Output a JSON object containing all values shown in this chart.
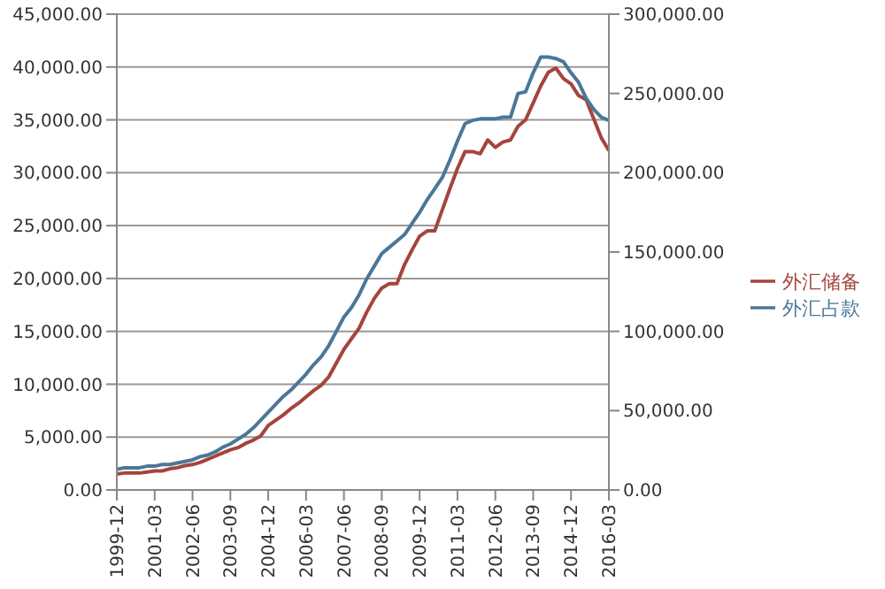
{
  "chart_data": {
    "type": "line",
    "categories": [
      "1999-12",
      null,
      null,
      null,
      null,
      "2001-03",
      null,
      null,
      null,
      null,
      "2002-06",
      null,
      null,
      null,
      null,
      "2003-09",
      null,
      null,
      null,
      null,
      "2004-12",
      null,
      null,
      null,
      null,
      "2006-03",
      null,
      null,
      null,
      null,
      "2007-06",
      null,
      null,
      null,
      null,
      "2008-09",
      null,
      null,
      null,
      null,
      "2009-12",
      null,
      null,
      null,
      null,
      "2011-03",
      null,
      null,
      null,
      null,
      "2012-06",
      null,
      null,
      null,
      null,
      "2013-09",
      null,
      null,
      null,
      null,
      "2014-12",
      null,
      null,
      null,
      null,
      "2016-03"
    ],
    "series": [
      {
        "name": "外汇储备",
        "color": "#a5443c",
        "values": [
          1500,
          1600,
          1600,
          1600,
          1700,
          1800,
          1800,
          2000,
          2100,
          2300,
          2400,
          2600,
          2900,
          3200,
          3500,
          3800,
          4000,
          4400,
          4700,
          5100,
          6100,
          6600,
          7100,
          7700,
          8200,
          8800,
          9400,
          9900,
          10700,
          12000,
          13300,
          14300,
          15300,
          16800,
          18100,
          19100,
          19500,
          19500,
          21300,
          22700,
          24000,
          24500,
          24500,
          26500,
          28500,
          30400,
          32000,
          32000,
          31800,
          33100,
          32400,
          32900,
          33100,
          34400,
          35000,
          36600,
          38200,
          39500,
          39900,
          38900,
          38400,
          37300,
          36900,
          35100,
          33300,
          32100
        ]
      },
      {
        "name": "外汇占款",
        "color": "#4a7799",
        "axis": "y2",
        "values": [
          13000,
          14000,
          14000,
          14000,
          15000,
          15000,
          16000,
          16000,
          17000,
          18000,
          19000,
          21000,
          22000,
          24000,
          27000,
          29000,
          32000,
          35000,
          39000,
          44000,
          49000,
          54000,
          59000,
          63000,
          68000,
          73000,
          79000,
          84000,
          91000,
          100000,
          109000,
          115000,
          123000,
          133000,
          141000,
          149000,
          153000,
          157000,
          161000,
          168000,
          175000,
          183000,
          190000,
          197000,
          208000,
          220000,
          231000,
          233000,
          234000,
          234000,
          234000,
          235000,
          235000,
          250000,
          251000,
          263000,
          273000,
          273000,
          272000,
          270000,
          263000,
          257000,
          247000,
          240000,
          235000,
          233000
        ]
      }
    ],
    "ylim": [
      0,
      45000
    ],
    "yticks": [
      {
        "value": 0,
        "label": "0.00"
      },
      {
        "value": 5000,
        "label": "5,000.00"
      },
      {
        "value": 10000,
        "label": "10,000.00"
      },
      {
        "value": 15000,
        "label": "15,000.00"
      },
      {
        "value": 20000,
        "label": "20,000.00"
      },
      {
        "value": 25000,
        "label": "25,000.00"
      },
      {
        "value": 30000,
        "label": "30,000.00"
      },
      {
        "value": 35000,
        "label": "35,000.00"
      },
      {
        "value": 40000,
        "label": "40,000.00"
      },
      {
        "value": 45000,
        "label": "45,000.00"
      }
    ],
    "y2lim": [
      0,
      300000
    ],
    "y2ticks": [
      {
        "value": 0,
        "label": "0.00"
      },
      {
        "value": 50000,
        "label": "50,000.00"
      },
      {
        "value": 100000,
        "label": "100,000.00"
      },
      {
        "value": 150000,
        "label": "150,000.00"
      },
      {
        "value": 200000,
        "label": "200,000.00"
      },
      {
        "value": 250000,
        "label": "250,000.00"
      },
      {
        "value": 300000,
        "label": "300,000.00"
      }
    ],
    "grid": "y",
    "legend": "right",
    "marker": "none",
    "line_style": "solid"
  }
}
